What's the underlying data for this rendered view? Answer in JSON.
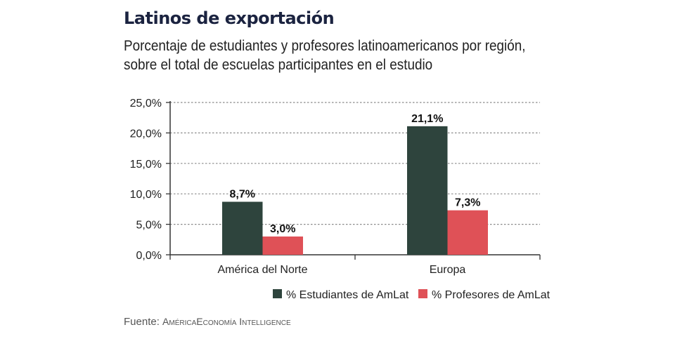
{
  "title": "Latinos de exportación",
  "subtitle_lines": [
    "Porcentaje de estudiantes y profesores latinoamericanos por región,",
    "sobre el total de escuelas participantes en el estudio"
  ],
  "source_label": "Fuente:",
  "source_name": "AméricaEconomía Intelligence",
  "chart_data": {
    "type": "bar",
    "title": "Latinos de exportación",
    "xlabel": "",
    "ylabel": "",
    "categories": [
      "América del Norte",
      "Europa"
    ],
    "series": [
      {
        "name": "% Estudiantes de AmLat",
        "color": "#2e443d",
        "values": [
          8.7,
          21.1
        ],
        "labels": [
          "8,7%",
          "21,1%"
        ]
      },
      {
        "name": "% Profesores de AmLat",
        "color": "#df5157",
        "values": [
          3.0,
          7.3
        ],
        "labels": [
          "3,0%",
          "7,3%"
        ]
      }
    ],
    "ylim": [
      0,
      25
    ],
    "yticks": [
      0,
      5,
      10,
      15,
      20,
      25
    ],
    "ytick_labels": [
      "0,0%",
      "5,0%",
      "10,0%",
      "15,0%",
      "20,0%",
      "25,0%"
    ],
    "grid": true,
    "legend_position": "bottom-right"
  }
}
